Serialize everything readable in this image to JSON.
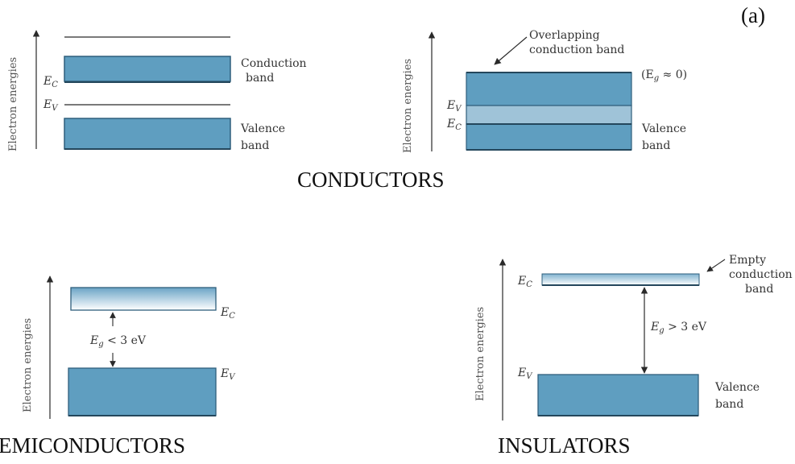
{
  "panel_label": "(a)",
  "axis_label": "Electron energies",
  "conductors": {
    "title": "CONDUCTORS",
    "left": {
      "conduction_label_1": "Conduction",
      "conduction_label_2": "band",
      "valence_label_1": "Valence",
      "valence_label_2": "band",
      "ec_main": "E",
      "ec_sub": "C",
      "ev_main": "E",
      "ev_sub": "V"
    },
    "right": {
      "overlap_label_1": "Overlapping",
      "overlap_label_2": "conduction band",
      "eg_text_a": "(E",
      "eg_sub": "g",
      "eg_text_b": " ≈ 0)",
      "valence_label_1": "Valence",
      "valence_label_2": "band",
      "ev_main": "E",
      "ev_sub": "V",
      "ec_main": "E",
      "ec_sub": "C"
    }
  },
  "semiconductors": {
    "title": "EMICONDUCTORS",
    "ec_main": "E",
    "ec_sub": "C",
    "ev_main": "E",
    "ev_sub": "V",
    "gap_main": "E",
    "gap_sub": "g",
    "gap_rest": " < 3 eV"
  },
  "insulators": {
    "title": "INSULATORS",
    "empty_label_1": "Empty",
    "empty_label_2": "conduction",
    "empty_label_3": "band",
    "valence_label_1": "Valence",
    "valence_label_2": "band",
    "ec_main": "E",
    "ec_sub": "C",
    "ev_main": "E",
    "ev_sub": "V",
    "gap_main": "E",
    "gap_sub": "g",
    "gap_rest": " > 3 eV"
  },
  "colors": {
    "band_fill": "#5f9ec0",
    "band_stroke": "#2f5f7c",
    "overlap_fill": "#9fc3d8",
    "line": "#2a2a2a"
  }
}
